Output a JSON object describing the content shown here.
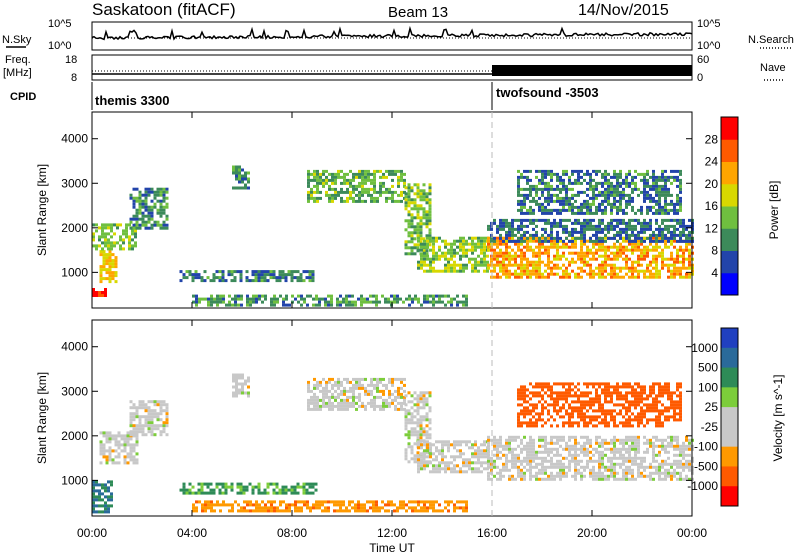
{
  "header": {
    "station": "Saskatoon (fitACF)",
    "beam": "Beam 13",
    "date": "14/Nov/2015"
  },
  "panels": {
    "noise": {
      "left_label": "N.Sky",
      "right_label": "N.Search",
      "tick_top": "10^5",
      "tick_bottom": "10^0"
    },
    "freq": {
      "left_label_1": "Freq.",
      "left_label_2": "[MHz]",
      "right_label": "Nave",
      "left_ticks": [
        "18",
        "8"
      ],
      "right_ticks": [
        "60",
        "0"
      ]
    },
    "cpid": {
      "label": "CPID",
      "segments": [
        {
          "name": "themis 3300",
          "start_hour": 0
        },
        {
          "name": "twofsound -3503",
          "start_hour": 16
        }
      ]
    }
  },
  "colors": {
    "power_scale": [
      "#0000ff",
      "#2244aa",
      "#3c8a5a",
      "#6fbf3f",
      "#d8d800",
      "#ffa500",
      "#ff5a00",
      "#ff0000"
    ],
    "velocity_scale": [
      "#2040c0",
      "#2a6a9a",
      "#2e8b57",
      "#7ccd3a",
      "#c8c8c8",
      "#c8c8c8",
      "#ff9900",
      "#ff5a00",
      "#ff0000"
    ]
  },
  "chart_data": [
    {
      "type": "heatmap",
      "name": "power",
      "ylabel": "Slant Range [km]",
      "xlabel": "",
      "x_ticks": [
        "00:00",
        "04:00",
        "08:00",
        "12:00",
        "16:00",
        "20:00",
        "00:00"
      ],
      "y_ticks": [
        "1000",
        "2000",
        "3000",
        "4000"
      ],
      "xlim": [
        0,
        24
      ],
      "ylim": [
        200,
        4600
      ],
      "colorbar_label": "Power [dB]",
      "colorbar_ticks": [
        "4",
        "8",
        "12",
        "16",
        "20",
        "24",
        "28"
      ],
      "colorbar_range": [
        0,
        32
      ],
      "regions": [
        {
          "t": [
            0.0,
            0.5
          ],
          "r": [
            450,
            650
          ],
          "v": 30
        },
        {
          "t": [
            0.3,
            1.0
          ],
          "r": [
            800,
            1500
          ],
          "v": 20
        },
        {
          "t": [
            0.0,
            1.8
          ],
          "r": [
            1500,
            2100
          ],
          "v": 14
        },
        {
          "t": [
            1.5,
            3.0
          ],
          "r": [
            2000,
            2900
          ],
          "v": 10
        },
        {
          "t": [
            5.6,
            6.3
          ],
          "r": [
            2900,
            3400
          ],
          "v": 10
        },
        {
          "t": [
            3.5,
            9.0
          ],
          "r": [
            800,
            1050
          ],
          "v": 9
        },
        {
          "t": [
            8.6,
            12.5
          ],
          "r": [
            2600,
            3300
          ],
          "v": 13
        },
        {
          "t": [
            12.5,
            13.5
          ],
          "r": [
            1400,
            3000
          ],
          "v": 14
        },
        {
          "t": [
            13.0,
            15.8
          ],
          "r": [
            1000,
            1800
          ],
          "v": 15
        },
        {
          "t": [
            15.8,
            24.0
          ],
          "r": [
            900,
            1800
          ],
          "v": 22
        },
        {
          "t": [
            15.8,
            24.0
          ],
          "r": [
            1700,
            2200
          ],
          "v": 8
        },
        {
          "t": [
            17.0,
            23.5
          ],
          "r": [
            2300,
            3300
          ],
          "v": 9
        },
        {
          "t": [
            4.0,
            15.0
          ],
          "r": [
            250,
            500
          ],
          "v": 11
        }
      ]
    },
    {
      "type": "heatmap",
      "name": "velocity",
      "ylabel": "Slant Range [km]",
      "xlabel": "Time UT",
      "x_ticks": [
        "00:00",
        "04:00",
        "08:00",
        "12:00",
        "16:00",
        "20:00",
        "00:00"
      ],
      "y_ticks": [
        "1000",
        "2000",
        "3000",
        "4000"
      ],
      "xlim": [
        0,
        24
      ],
      "ylim": [
        200,
        4600
      ],
      "colorbar_label": "Velocity [m s^-1]",
      "colorbar_ticks": [
        "1000",
        "500",
        "100",
        "25",
        "-25",
        "-100",
        "-500",
        "-1000"
      ],
      "regions": [
        {
          "t": [
            0.0,
            0.8
          ],
          "r": [
            300,
            1000
          ],
          "v": 100
        },
        {
          "t": [
            0.3,
            1.8
          ],
          "r": [
            1400,
            2100
          ],
          "v": 0
        },
        {
          "t": [
            1.5,
            3.0
          ],
          "r": [
            2000,
            2800
          ],
          "v": 0
        },
        {
          "t": [
            5.6,
            6.3
          ],
          "r": [
            2900,
            3400
          ],
          "v": 0
        },
        {
          "t": [
            3.5,
            9.0
          ],
          "r": [
            700,
            950
          ],
          "v": 60
        },
        {
          "t": [
            8.6,
            12.5
          ],
          "r": [
            2600,
            3300
          ],
          "v": 0
        },
        {
          "t": [
            12.5,
            13.5
          ],
          "r": [
            1400,
            3000
          ],
          "v": 0
        },
        {
          "t": [
            13.0,
            15.8
          ],
          "r": [
            1200,
            1900
          ],
          "v": 0
        },
        {
          "t": [
            15.8,
            24.0
          ],
          "r": [
            1000,
            2000
          ],
          "v": 0
        },
        {
          "t": [
            17.0,
            23.5
          ],
          "r": [
            2200,
            3200
          ],
          "v": -150
        },
        {
          "t": [
            4.0,
            15.0
          ],
          "r": [
            300,
            550
          ],
          "v": -80
        }
      ]
    }
  ],
  "axis": {
    "time_label": "Time UT",
    "divider_hour": 16
  }
}
